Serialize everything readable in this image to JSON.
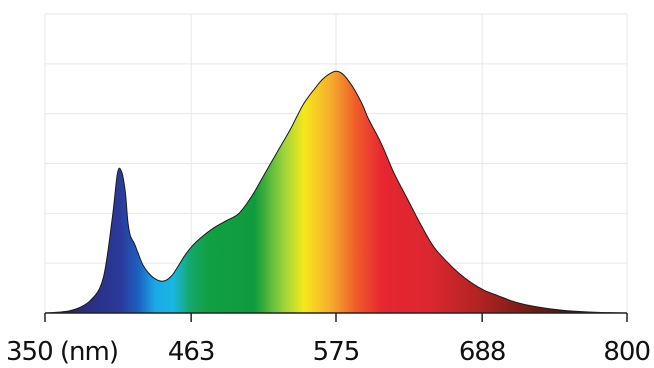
{
  "chart_data": {
    "type": "area",
    "title": "",
    "xlabel": "",
    "ylabel": "",
    "x_unit_label": "(nm)",
    "xlim": [
      350,
      800
    ],
    "ylim": [
      0,
      1.2
    ],
    "x_ticks": [
      350,
      463,
      575,
      688,
      800
    ],
    "y_gridlines": [
      0.2,
      0.4,
      0.6,
      0.8,
      1.0,
      1.2
    ],
    "grid": true,
    "fill": "visible-spectrum gradient by wavelength",
    "series": [
      {
        "x": [
          350,
          370,
          385,
          395,
          402,
          406,
          409,
          412,
          414,
          416,
          419,
          422,
          426,
          432,
          438,
          443,
          448,
          452,
          458,
          464,
          470,
          480,
          490,
          500,
          510,
          520,
          530,
          540,
          550,
          560,
          565,
          570,
          575,
          580,
          585,
          590,
          596,
          600,
          610,
          620,
          630,
          640,
          650,
          660,
          670,
          680,
          690,
          700,
          710,
          720,
          730,
          740,
          750,
          760,
          770,
          780,
          790,
          800
        ],
        "y": [
          0.0,
          0.01,
          0.05,
          0.14,
          0.38,
          0.56,
          0.57,
          0.49,
          0.37,
          0.31,
          0.28,
          0.24,
          0.19,
          0.15,
          0.13,
          0.13,
          0.15,
          0.18,
          0.23,
          0.27,
          0.3,
          0.34,
          0.37,
          0.4,
          0.47,
          0.56,
          0.65,
          0.74,
          0.84,
          0.91,
          0.94,
          0.96,
          0.97,
          0.96,
          0.93,
          0.89,
          0.83,
          0.78,
          0.68,
          0.56,
          0.46,
          0.36,
          0.27,
          0.21,
          0.16,
          0.12,
          0.09,
          0.07,
          0.05,
          0.035,
          0.025,
          0.017,
          0.011,
          0.007,
          0.004,
          0.002,
          0.001,
          0.0
        ]
      }
    ]
  }
}
